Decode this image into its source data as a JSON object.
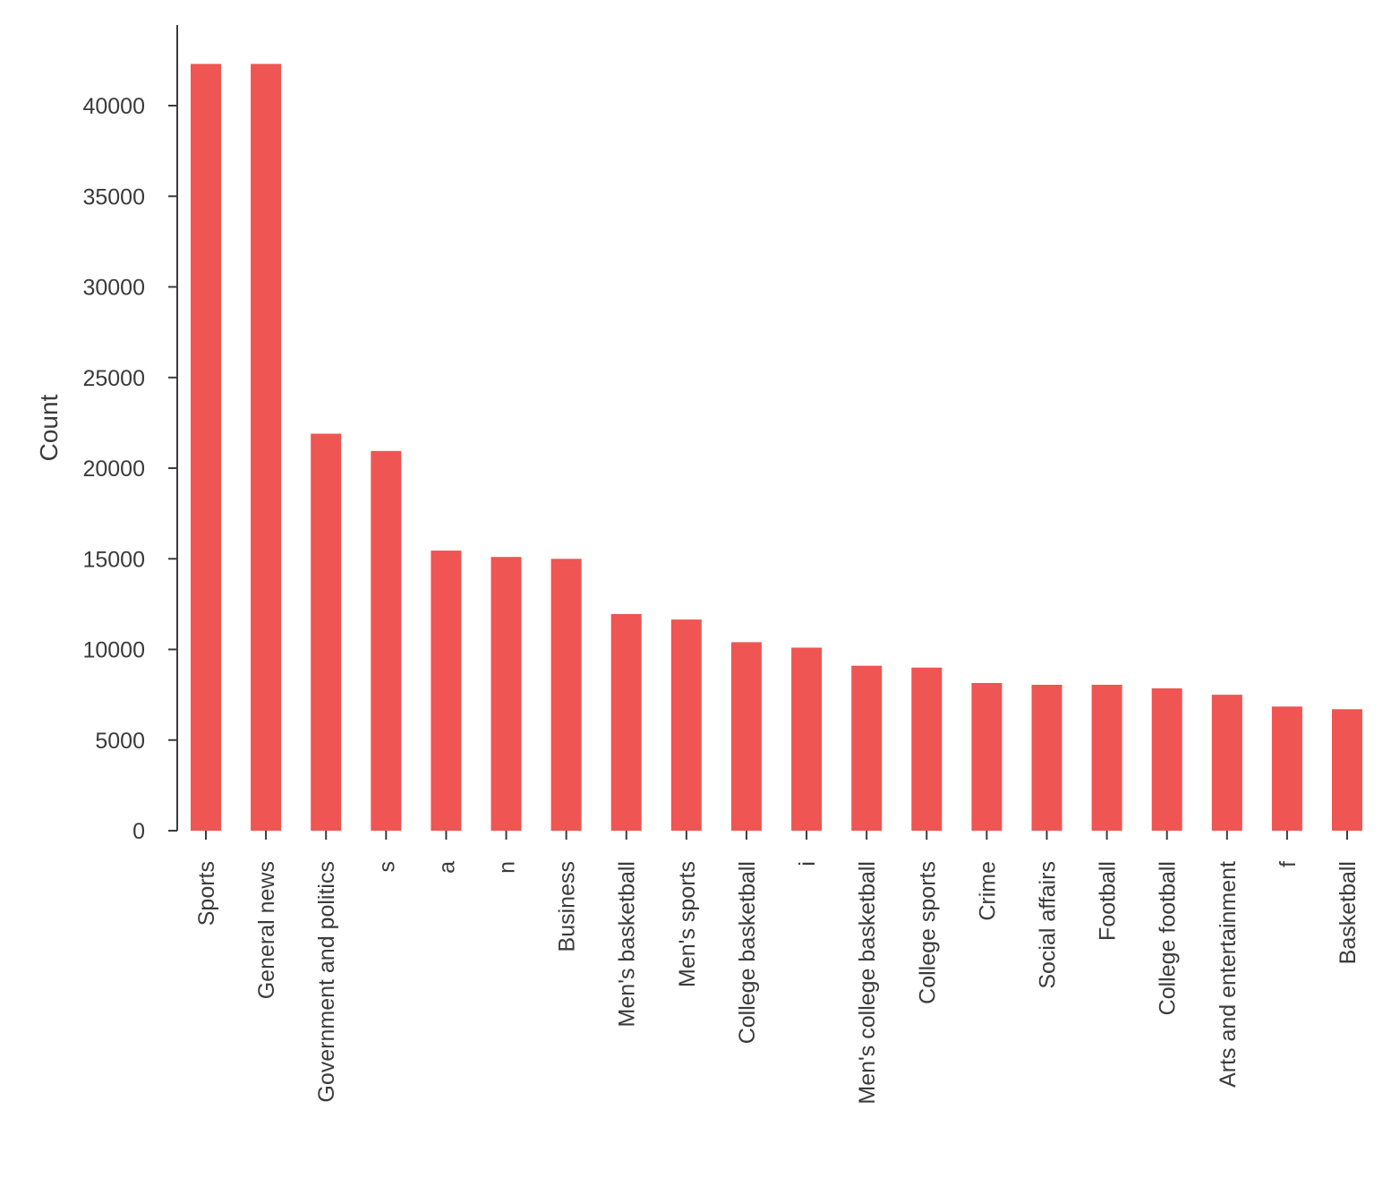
{
  "chart_data": {
    "type": "bar",
    "title": "",
    "xlabel": "",
    "ylabel": "Count",
    "ylim": [
      0,
      44500
    ],
    "y_ticks": [
      0,
      5000,
      10000,
      15000,
      20000,
      25000,
      30000,
      35000,
      40000
    ],
    "grid": false,
    "bar_color": "#ef5552",
    "axis_color": "#3b3b3b",
    "categories": [
      "Sports",
      "General news",
      "Government and politics",
      "s",
      "a",
      "n",
      "Business",
      "Men's basketball",
      "Men's sports",
      "College basketball",
      "i",
      "Men's college basketball",
      "College sports",
      "Crime",
      "Social affairs",
      "Football",
      "College football",
      "Arts and entertainment",
      "f",
      "Basketball"
    ],
    "values": [
      42300,
      42300,
      21900,
      20950,
      15450,
      15100,
      15000,
      11950,
      11650,
      10400,
      10100,
      9100,
      9000,
      8150,
      8050,
      8050,
      7850,
      7500,
      6850,
      6700
    ]
  }
}
